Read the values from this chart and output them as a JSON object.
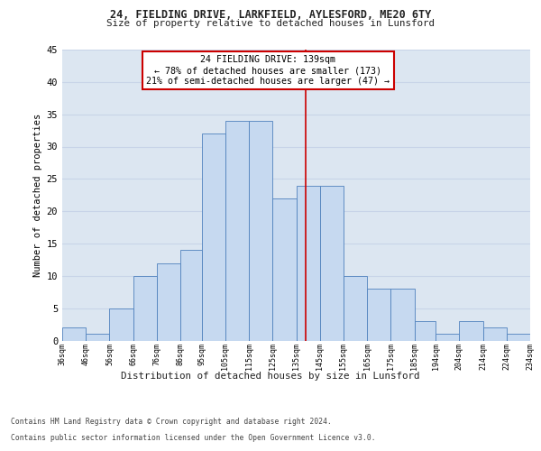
{
  "title1": "24, FIELDING DRIVE, LARKFIELD, AYLESFORD, ME20 6TY",
  "title2": "Size of property relative to detached houses in Lunsford",
  "xlabel": "Distribution of detached houses by size in Lunsford",
  "ylabel": "Number of detached properties",
  "footer1": "Contains HM Land Registry data © Crown copyright and database right 2024.",
  "footer2": "Contains public sector information licensed under the Open Government Licence v3.0.",
  "annotation_title": "24 FIELDING DRIVE: 139sqm",
  "annotation_line1": "← 78% of detached houses are smaller (173)",
  "annotation_line2": "21% of semi-detached houses are larger (47) →",
  "property_size": 139,
  "bar_left_edges": [
    36,
    46,
    56,
    66,
    76,
    86,
    95,
    105,
    115,
    125,
    135,
    145,
    155,
    165,
    175,
    185,
    194,
    204,
    214,
    224
  ],
  "bar_widths": [
    10,
    10,
    10,
    10,
    10,
    9,
    10,
    10,
    10,
    10,
    10,
    10,
    10,
    10,
    10,
    9,
    10,
    10,
    10,
    10
  ],
  "bar_heights": [
    2,
    1,
    5,
    10,
    12,
    14,
    32,
    34,
    34,
    22,
    24,
    24,
    10,
    8,
    8,
    3,
    1,
    3,
    2,
    1
  ],
  "tick_labels": [
    "36sqm",
    "46sqm",
    "56sqm",
    "66sqm",
    "76sqm",
    "86sqm",
    "95sqm",
    "105sqm",
    "115sqm",
    "125sqm",
    "135sqm",
    "145sqm",
    "155sqm",
    "165sqm",
    "175sqm",
    "185sqm",
    "194sqm",
    "204sqm",
    "214sqm",
    "224sqm",
    "234sqm"
  ],
  "bar_color": "#c6d9f0",
  "bar_edge_color": "#4f81bd",
  "grid_color": "#c8d4e8",
  "bg_color": "#dce6f1",
  "vline_color": "#cc0000",
  "vline_x": 139,
  "annotation_box_color": "#cc0000",
  "ylim": [
    0,
    45
  ],
  "yticks": [
    0,
    5,
    10,
    15,
    20,
    25,
    30,
    35,
    40,
    45
  ]
}
